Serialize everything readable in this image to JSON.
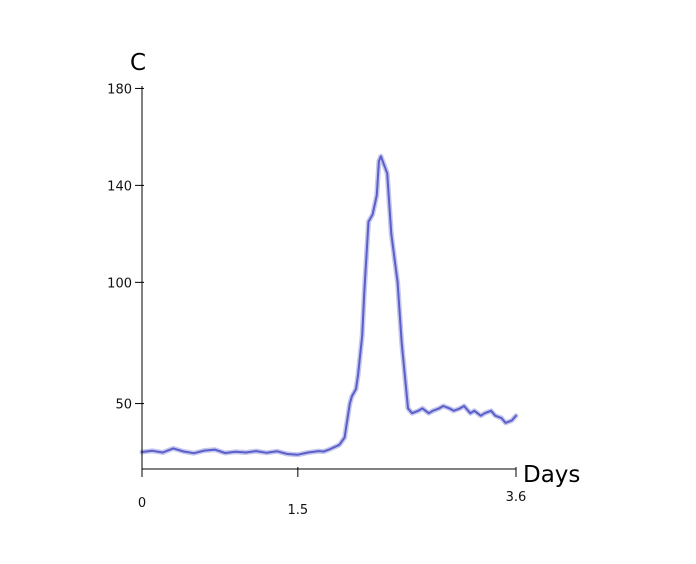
{
  "chart_data": {
    "type": "line",
    "title": "",
    "xlabel": "Days",
    "ylabel": "C",
    "xlim": [
      0,
      3.6
    ],
    "ylim": [
      23,
      181
    ],
    "xticks": [
      0,
      1.5,
      3.6
    ],
    "xtick_labels": [
      "0",
      "1.5",
      "3.6"
    ],
    "yticks": [
      50,
      100,
      140,
      180
    ],
    "ytick_labels": [
      "50",
      "100",
      "140",
      "180"
    ],
    "grid": false,
    "legend": "none",
    "series": [
      {
        "color": "#5a5fc9",
        "x": [
          0,
          0.1,
          0.2,
          0.3,
          0.4,
          0.5,
          0.6,
          0.7,
          0.8,
          0.9,
          1.0,
          1.1,
          1.2,
          1.3,
          1.4,
          1.5,
          1.6,
          1.7,
          1.75,
          1.8,
          1.9,
          1.95,
          2.0,
          2.02,
          2.06,
          2.08,
          2.12,
          2.14,
          2.18,
          2.22,
          2.26,
          2.28,
          2.3,
          2.36,
          2.4,
          2.46,
          2.5,
          2.56,
          2.6,
          2.66,
          2.7,
          2.76,
          2.8,
          2.86,
          2.9,
          2.96,
          3.0,
          3.06,
          3.1,
          3.16,
          3.2,
          3.26,
          3.3,
          3.36,
          3.4,
          3.46,
          3.5,
          3.56,
          3.6
        ],
        "y": [
          30,
          30.5,
          29.8,
          31.5,
          30.2,
          29.5,
          30.6,
          31,
          29.6,
          30.1,
          29.8,
          30.4,
          29.7,
          30.3,
          29.2,
          28.9,
          29.8,
          30.4,
          30.2,
          31,
          33,
          36,
          50,
          53,
          56,
          62,
          78,
          96,
          125,
          128,
          136,
          150,
          152,
          145,
          120,
          100,
          75,
          48,
          46,
          47,
          48,
          46,
          47,
          48,
          49,
          48,
          47,
          48,
          49,
          46,
          47,
          45,
          46,
          47,
          45,
          44,
          42,
          43,
          45
        ]
      }
    ]
  }
}
